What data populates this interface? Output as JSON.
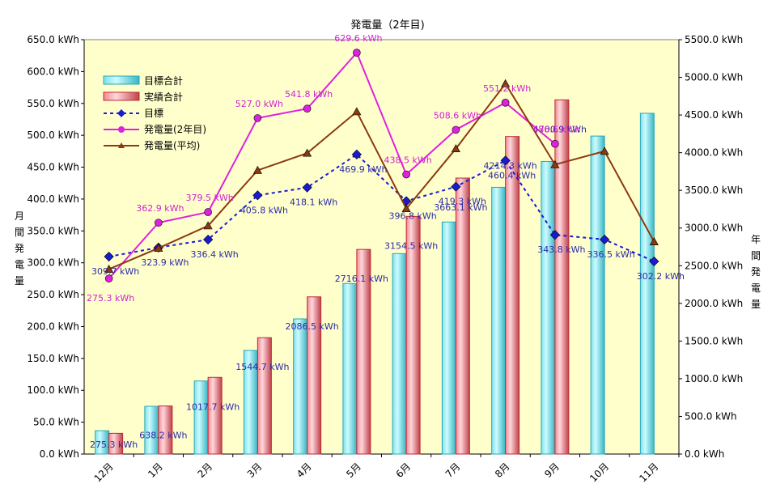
{
  "chart_data": {
    "type": "bar",
    "title": "発電量（2年目)",
    "categories": [
      "12月",
      "1月",
      "2月",
      "3月",
      "4月",
      "5月",
      "6月",
      "7月",
      "8月",
      "9月",
      "10月",
      "11月"
    ],
    "y_left": {
      "label": [
        "月",
        "間",
        "発",
        "電",
        "量"
      ],
      "ylim": [
        0,
        650
      ],
      "ticks": [
        "0.0 kWh",
        "50.0 kWh",
        "100.0 kWh",
        "150.0 kWh",
        "200.0 kWh",
        "250.0 kWh",
        "300.0 kWh",
        "350.0 kWh",
        "400.0 kWh",
        "450.0 kWh",
        "500.0 kWh",
        "550.0 kWh",
        "600.0 kWh",
        "650.0 kWh"
      ]
    },
    "y_right": {
      "label": [
        "年",
        "間",
        "発",
        "電",
        "量"
      ],
      "ylim": [
        0,
        5500
      ],
      "ticks": [
        "0.0 kWh",
        "500.0 kWh",
        "1000.0 kWh",
        "1500.0 kWh",
        "2000.0 kWh",
        "2500.0 kWh",
        "3000.0 kWh",
        "3500.0 kWh",
        "4000.0 kWh",
        "4500.0 kWh",
        "5000.0 kWh",
        "5500.0 kWh"
      ]
    },
    "legend_position": "top-left",
    "grid": false,
    "series": [
      {
        "name": "目標合計",
        "kind": "bar",
        "axis": "right",
        "color": "#7fe0e8",
        "values": [
          309.7,
          633.6,
          969.9,
          1375.7,
          1793.8,
          2263.7,
          2660.5,
          3079.8,
          3540.2,
          3884.0,
          4220.5,
          4522.7
        ],
        "labels": []
      },
      {
        "name": "実績合計",
        "kind": "bar",
        "axis": "right",
        "color": "#f08890",
        "values": [
          275.3,
          638.2,
          1017.7,
          1544.7,
          2086.5,
          2716.1,
          3154.5,
          3663.1,
          4214.3,
          4700.9,
          null,
          null
        ],
        "labels": [
          "275.3 kWh",
          "638.2 kWh",
          "1017.7 kWh",
          "1544.7 kWh",
          "2086.5 kWh",
          "2716.1 kWh",
          "3154.5 kWh",
          "3663.1 kWh",
          "4214.3 kWh",
          "4700.9 kWh",
          "",
          ""
        ]
      },
      {
        "name": "目標",
        "kind": "line",
        "axis": "left",
        "color": "#1a1ad0",
        "dashed": true,
        "values": [
          309.7,
          323.9,
          336.4,
          405.8,
          418.1,
          469.9,
          396.8,
          419.3,
          460.4,
          343.8,
          336.5,
          302.2
        ],
        "labels": [
          "309.7 kWh",
          "323.9 kWh",
          "336.4 kWh",
          "405.8 kWh",
          "418.1 kWh",
          "469.9 kWh",
          "396.8 kWh",
          "419.3 kWh",
          "460.4 kWh",
          "343.8 kWh",
          "336.5 kWh",
          "302.2 kWh"
        ]
      },
      {
        "name": "発電量(2年目)",
        "kind": "line",
        "axis": "left",
        "color": "#e020e0",
        "values": [
          275.3,
          362.9,
          379.5,
          527.0,
          541.8,
          629.6,
          438.5,
          508.6,
          551.2,
          486.6,
          null,
          null
        ],
        "labels": [
          "275.3 kWh",
          "362.9 kWh",
          "379.5 kWh",
          "527.0 kWh",
          "541.8 kWh",
          "629.6 kWh",
          "438.5 kWh",
          "508.6 kWh",
          "551.2 kWh",
          "486.6 kWh",
          "",
          ""
        ]
      },
      {
        "name": "発電量(平均)",
        "kind": "line",
        "axis": "left",
        "color": "#8b3a10",
        "values": [
          290,
          323,
          358,
          445,
          472,
          537,
          385,
          479,
          581,
          454,
          475,
          333
        ],
        "labels": []
      }
    ]
  },
  "colors": {
    "plot_bg": "#ffffcc",
    "cyan_dark": "#2aa8b8",
    "red_dark": "#c02a36"
  }
}
